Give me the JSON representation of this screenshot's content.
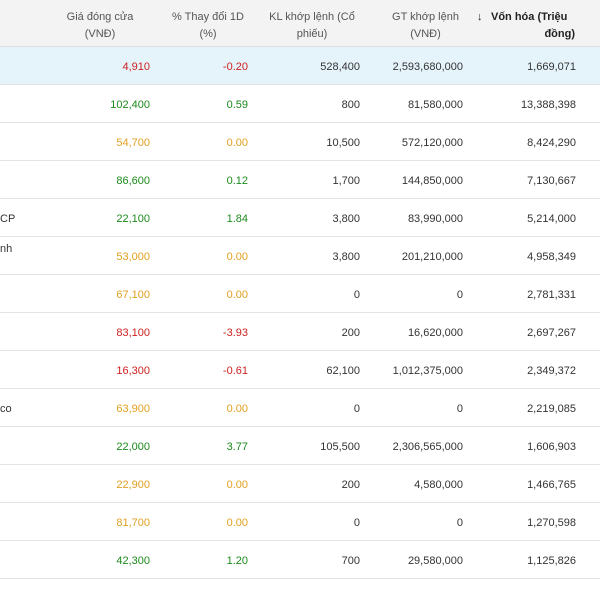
{
  "header": {
    "price_l1": "Giá đóng cửa",
    "price_l2": "(VNĐ)",
    "change_l1": "% Thay đổi 1D",
    "change_l2": "(%)",
    "vol_l1": "KL khớp lệnh (Cổ",
    "vol_l2": "phiếu)",
    "val_l1": "GT khớp lệnh",
    "val_l2": "(VNĐ)",
    "cap_arrow": "↓",
    "cap_l1": "Vốn hóa (Triệu",
    "cap_l2": "đồng)"
  },
  "colors": {
    "up": "#1c8a1c",
    "down": "#cc1f1f",
    "flat": "#e0a020",
    "highlight": "#e5f4fb"
  },
  "rows": [
    {
      "name": "",
      "price": "4,910",
      "change": "-0.20",
      "trend": "down",
      "vol": "528,400",
      "val": "2,593,680,000",
      "cap": "1,669,071",
      "highlight": true
    },
    {
      "name": "",
      "price": "102,400",
      "change": "0.59",
      "trend": "up",
      "vol": "800",
      "val": "81,580,000",
      "cap": "13,388,398"
    },
    {
      "name": "",
      "price": "54,700",
      "change": "0.00",
      "trend": "flat",
      "vol": "10,500",
      "val": "572,120,000",
      "cap": "8,424,290"
    },
    {
      "name": "",
      "price": "86,600",
      "change": "0.12",
      "trend": "up",
      "vol": "1,700",
      "val": "144,850,000",
      "cap": "7,130,667"
    },
    {
      "name": "CP",
      "price": "22,100",
      "change": "1.84",
      "trend": "up",
      "vol": "3,800",
      "val": "83,990,000",
      "cap": "5,214,000"
    },
    {
      "name": "nh",
      "price": "53,000",
      "change": "0.00",
      "trend": "flat",
      "vol": "3,800",
      "val": "201,210,000",
      "cap": "4,958,349",
      "name_top": true
    },
    {
      "name": "",
      "price": "67,100",
      "change": "0.00",
      "trend": "flat",
      "vol": "0",
      "val": "0",
      "cap": "2,781,331"
    },
    {
      "name": "",
      "price": "83,100",
      "change": "-3.93",
      "trend": "down",
      "vol": "200",
      "val": "16,620,000",
      "cap": "2,697,267"
    },
    {
      "name": "",
      "price": "16,300",
      "change": "-0.61",
      "trend": "down",
      "vol": "62,100",
      "val": "1,012,375,000",
      "cap": "2,349,372"
    },
    {
      "name": "co",
      "price": "63,900",
      "change": "0.00",
      "trend": "flat",
      "vol": "0",
      "val": "0",
      "cap": "2,219,085"
    },
    {
      "name": "",
      "price": "22,000",
      "change": "3.77",
      "trend": "up",
      "vol": "105,500",
      "val": "2,306,565,000",
      "cap": "1,606,903"
    },
    {
      "name": "",
      "price": "22,900",
      "change": "0.00",
      "trend": "flat",
      "vol": "200",
      "val": "4,580,000",
      "cap": "1,466,765"
    },
    {
      "name": "",
      "price": "81,700",
      "change": "0.00",
      "trend": "flat",
      "vol": "0",
      "val": "0",
      "cap": "1,270,598"
    },
    {
      "name": "",
      "price": "42,300",
      "change": "1.20",
      "trend": "up",
      "vol": "700",
      "val": "29,580,000",
      "cap": "1,125,826"
    }
  ]
}
